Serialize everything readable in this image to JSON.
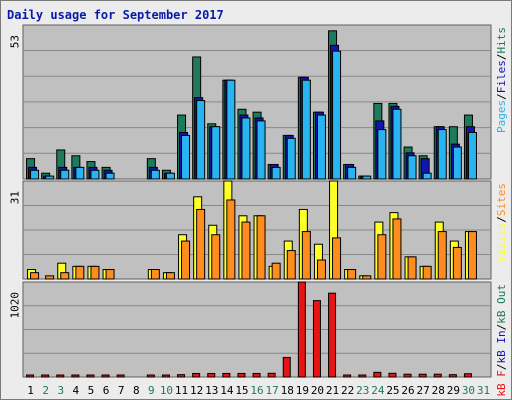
{
  "chart_data": {
    "type": "bar",
    "title": "Daily usage for September 2017",
    "days": [
      "1",
      "2",
      "3",
      "4",
      "5",
      "6",
      "7",
      "8",
      "9",
      "10",
      "11",
      "12",
      "13",
      "14",
      "15",
      "16",
      "17",
      "18",
      "19",
      "20",
      "21",
      "22",
      "23",
      "24",
      "25",
      "26",
      "27",
      "28",
      "29",
      "30",
      "31"
    ],
    "weekend_days": [
      "2",
      "3",
      "9",
      "10",
      "16",
      "17",
      "23",
      "24",
      "30",
      "31"
    ],
    "colors": {
      "hits": "#1e7a5a",
      "files": "#1414b4",
      "pages": "#28b4f0",
      "visits": "#ffff28",
      "sites": "#ff8c1e",
      "kbytes": "#e81414",
      "title": "#0a1aa8",
      "weekday_label": "#000000",
      "weekend_label": "#1e7a5a"
    },
    "panels": [
      {
        "ymax_label": "53",
        "ylim": [
          0,
          53
        ],
        "legend": [
          {
            "text": "Pages",
            "color": "#28b4f0"
          },
          {
            "text": "/",
            "color": "#000000"
          },
          {
            "text": "Files",
            "color": "#1414b4"
          },
          {
            "text": "/",
            "color": "#000000"
          },
          {
            "text": "Hits",
            "color": "#1e7a5a"
          }
        ],
        "series": [
          {
            "name": "Hits",
            "key": "hits",
            "values": [
              7,
              2,
              10,
              8,
              6,
              4,
              0,
              0,
              7,
              3,
              22,
              42,
              19,
              34,
              24,
              23,
              5,
              15,
              35,
              23,
              51,
              5,
              1,
              26,
              26,
              11,
              8,
              18,
              18,
              22,
              0
            ]
          },
          {
            "name": "Files",
            "key": "files",
            "values": [
              4,
              1,
              4,
              4,
              4,
              3,
              0,
              0,
              4,
              2,
              16,
              28,
              18,
              34,
              22,
              21,
              5,
              15,
              35,
              23,
              46,
              5,
              1,
              20,
              25,
              9,
              7,
              18,
              12,
              18,
              0
            ]
          },
          {
            "name": "Pages",
            "key": "pages",
            "values": [
              3,
              1,
              3,
              4,
              3,
              2,
              0,
              0,
              3,
              2,
              15,
              27,
              18,
              34,
              21,
              20,
              4,
              14,
              34,
              22,
              44,
              4,
              1,
              17,
              24,
              8,
              2,
              17,
              11,
              16,
              0
            ]
          }
        ]
      },
      {
        "ymax_label": "31",
        "ylim": [
          0,
          31
        ],
        "legend": [
          {
            "text": "Visits",
            "color": "#ffff28"
          },
          {
            "text": "/",
            "color": "#000000"
          },
          {
            "text": "Sites",
            "color": "#ff8c1e"
          }
        ],
        "series": [
          {
            "name": "Visits",
            "key": "visits",
            "values": [
              3,
              0,
              5,
              4,
              4,
              3,
              0,
              0,
              3,
              2,
              14,
              26,
              17,
              31,
              20,
              20,
              4,
              12,
              22,
              11,
              31,
              3,
              1,
              18,
              21,
              7,
              4,
              18,
              12,
              15,
              0
            ]
          },
          {
            "name": "Sites",
            "key": "sites",
            "values": [
              2,
              1,
              2,
              4,
              4,
              3,
              0,
              0,
              3,
              2,
              12,
              22,
              14,
              25,
              18,
              20,
              5,
              9,
              15,
              6,
              13,
              3,
              1,
              14,
              19,
              7,
              4,
              15,
              10,
              15,
              0
            ]
          }
        ]
      },
      {
        "ymax_label": "1020",
        "ylim": [
          0,
          1020
        ],
        "legend": [
          {
            "text": "kB F",
            "color": "#e81414"
          },
          {
            "text": "/",
            "color": "#000000"
          },
          {
            "text": "kB In",
            "color": "#1414b4"
          },
          {
            "text": "/",
            "color": "#000000"
          },
          {
            "text": "kB Out",
            "color": "#1e7a5a"
          }
        ],
        "series": [
          {
            "name": "kB F",
            "key": "kbytes",
            "values": [
              10,
              2,
              10,
              10,
              10,
              10,
              10,
              0,
              18,
              18,
              25,
              38,
              38,
              38,
              38,
              38,
              40,
              210,
              1020,
              820,
              900,
              15,
              18,
              50,
              40,
              30,
              30,
              30,
              25,
              35,
              0
            ]
          }
        ]
      }
    ]
  }
}
